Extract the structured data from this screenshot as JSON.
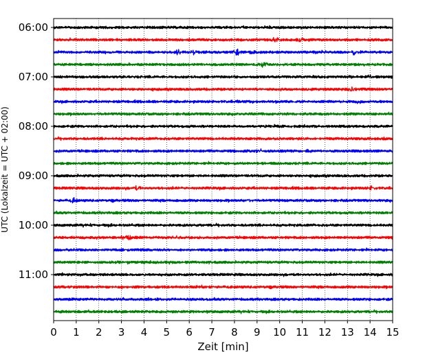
{
  "chart_data": {
    "type": "line",
    "title": "",
    "xlabel": "Zeit  [min]",
    "ylabel": "UTC (Lokalzeit = UTC + 02:00)",
    "xlim": [
      0,
      15
    ],
    "x_ticks": [
      "0",
      "1",
      "2",
      "3",
      "4",
      "5",
      "6",
      "7",
      "8",
      "9",
      "10",
      "11",
      "12",
      "13",
      "14",
      "15"
    ],
    "y_tick_labels": [
      "06:00",
      "07:00",
      "08:00",
      "09:00",
      "10:00",
      "11:00"
    ],
    "grid": "vertical dotted at each minute",
    "trace_start_times": [
      "06:00",
      "06:15",
      "06:30",
      "06:45",
      "07:00",
      "07:15",
      "07:30",
      "07:45",
      "08:00",
      "08:15",
      "08:30",
      "08:45",
      "09:00",
      "09:15",
      "09:30",
      "09:45",
      "10:00",
      "10:15",
      "10:30",
      "10:45",
      "11:00",
      "11:15",
      "11:30",
      "11:45"
    ],
    "trace_colors": [
      "#000000",
      "#ff0000",
      "#0000ff",
      "#008000"
    ],
    "events": [
      {
        "trace": 1,
        "t": 9.8,
        "amp": 0.28
      },
      {
        "trace": 1,
        "t": 10.9,
        "amp": 0.22
      },
      {
        "trace": 2,
        "t": 5.5,
        "amp": 0.3
      },
      {
        "trace": 2,
        "t": 6.2,
        "amp": 0.25
      },
      {
        "trace": 2,
        "t": 8.1,
        "amp": 0.38
      },
      {
        "trace": 2,
        "t": 8.8,
        "amp": 0.25
      },
      {
        "trace": 2,
        "t": 13.3,
        "amp": 0.3
      },
      {
        "trace": 3,
        "t": 9.3,
        "amp": 0.4
      },
      {
        "trace": 4,
        "t": 14.0,
        "amp": 0.2
      },
      {
        "trace": 5,
        "t": 13.2,
        "amp": 0.3
      },
      {
        "trace": 6,
        "t": 13.5,
        "amp": 0.28
      },
      {
        "trace": 10,
        "t": 9.1,
        "amp": 0.2
      },
      {
        "trace": 13,
        "t": 3.7,
        "amp": 0.25
      },
      {
        "trace": 13,
        "t": 14.1,
        "amp": 0.25
      },
      {
        "trace": 14,
        "t": 0.9,
        "amp": 0.3
      },
      {
        "trace": 14,
        "t": 8.6,
        "amp": 0.32
      },
      {
        "trace": 17,
        "t": 3.3,
        "amp": 0.25
      },
      {
        "trace": 17,
        "t": 5.4,
        "amp": 0.18
      }
    ]
  }
}
